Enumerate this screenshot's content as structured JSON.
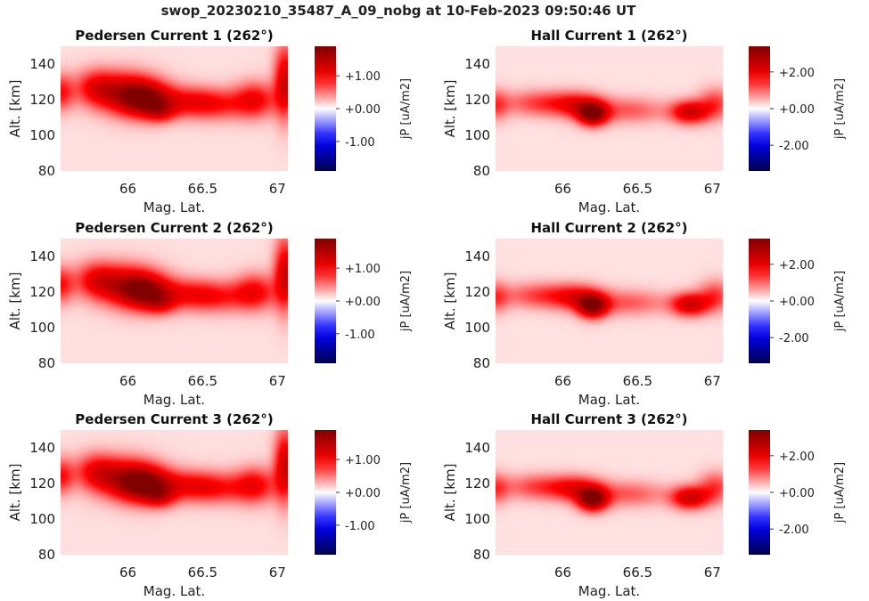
{
  "figure": {
    "title": "swop_20230210_35487_A_09_nobg at 10-Feb-2023 09:50:46 UT"
  },
  "chart_data": [
    {
      "type": "heatmap",
      "title": "Pedersen Current 1 (262°)",
      "xlabel": "Mag. Lat.",
      "ylabel": "Alt. [km]",
      "xlim": [
        65.55,
        67.07
      ],
      "ylim": [
        80,
        150
      ],
      "xticks": [
        66,
        66.5,
        67
      ],
      "xticklabels": [
        "66",
        "66.5",
        "67"
      ],
      "yticks": [
        80,
        100,
        120,
        140
      ],
      "yticklabels": [
        "80",
        "100",
        "120",
        "140"
      ],
      "colorbar": {
        "label": "jP [uA/m2]",
        "vmin": -1.9,
        "vmax": 1.9,
        "ticks": [
          1.0,
          0.0,
          -1.0
        ],
        "ticklabels": [
          "+1.00",
          "+0.00",
          "-1.00"
        ],
        "cmap": "seismic"
      },
      "background_value": 0.12,
      "blobs": [
        {
          "lat": 65.55,
          "alt": 124,
          "sigma_lat": 0.06,
          "sigma_alt": 7,
          "value": 0.75
        },
        {
          "lat": 65.78,
          "alt": 127,
          "sigma_lat": 0.1,
          "sigma_alt": 7,
          "value": 0.7
        },
        {
          "lat": 65.98,
          "alt": 124,
          "sigma_lat": 0.15,
          "sigma_alt": 8,
          "value": 1.1
        },
        {
          "lat": 66.12,
          "alt": 120,
          "sigma_lat": 0.12,
          "sigma_alt": 7,
          "value": 1.25
        },
        {
          "lat": 66.22,
          "alt": 113,
          "sigma_lat": 0.07,
          "sigma_alt": 4,
          "value": 0.55
        },
        {
          "lat": 66.4,
          "alt": 119,
          "sigma_lat": 0.16,
          "sigma_alt": 6,
          "value": 0.7
        },
        {
          "lat": 66.6,
          "alt": 117,
          "sigma_lat": 0.15,
          "sigma_alt": 6,
          "value": 0.55
        },
        {
          "lat": 66.85,
          "alt": 120,
          "sigma_lat": 0.1,
          "sigma_alt": 7,
          "value": 0.85
        },
        {
          "lat": 67.05,
          "alt": 130,
          "sigma_lat": 0.05,
          "sigma_alt": 14,
          "value": 1.15
        }
      ]
    },
    {
      "type": "heatmap",
      "title": "Hall Current 1 (262°)",
      "xlabel": "Mag. Lat.",
      "ylabel": "Alt. [km]",
      "xlim": [
        65.55,
        67.07
      ],
      "ylim": [
        80,
        150
      ],
      "xticks": [
        66,
        66.5,
        67
      ],
      "xticklabels": [
        "66",
        "66.5",
        "67"
      ],
      "yticks": [
        80,
        100,
        120,
        140
      ],
      "yticklabels": [
        "80",
        "100",
        "120",
        "140"
      ],
      "colorbar": {
        "label": "jP [uA/m2]",
        "vmin": -3.4,
        "vmax": 3.4,
        "ticks": [
          2.0,
          0.0,
          -2.0
        ],
        "ticklabels": [
          "+2.00",
          "+0.00",
          "-2.00"
        ],
        "cmap": "seismic"
      },
      "background_value": 0.2,
      "blobs": [
        {
          "lat": 65.55,
          "alt": 117,
          "sigma_lat": 0.06,
          "sigma_alt": 6,
          "value": 1.0
        },
        {
          "lat": 65.85,
          "alt": 118,
          "sigma_lat": 0.18,
          "sigma_alt": 5,
          "value": 1.1
        },
        {
          "lat": 66.1,
          "alt": 117,
          "sigma_lat": 0.12,
          "sigma_alt": 5,
          "value": 1.3
        },
        {
          "lat": 66.2,
          "alt": 112,
          "sigma_lat": 0.07,
          "sigma_alt": 4.5,
          "value": 2.9
        },
        {
          "lat": 66.45,
          "alt": 114,
          "sigma_lat": 0.17,
          "sigma_alt": 5,
          "value": 0.9
        },
        {
          "lat": 66.85,
          "alt": 113,
          "sigma_lat": 0.09,
          "sigma_alt": 4.5,
          "value": 2.1
        },
        {
          "lat": 67.02,
          "alt": 118,
          "sigma_lat": 0.08,
          "sigma_alt": 6,
          "value": 1.1
        }
      ]
    },
    {
      "type": "heatmap",
      "title": "Pedersen Current 2 (262°)",
      "xlabel": "Mag. Lat.",
      "ylabel": "Alt. [km]",
      "xlim": [
        65.55,
        67.07
      ],
      "ylim": [
        80,
        150
      ],
      "xticks": [
        66,
        66.5,
        67
      ],
      "xticklabels": [
        "66",
        "66.5",
        "67"
      ],
      "yticks": [
        80,
        100,
        120,
        140
      ],
      "yticklabels": [
        "80",
        "100",
        "120",
        "140"
      ],
      "colorbar": {
        "label": "jP [uA/m2]",
        "vmin": -1.9,
        "vmax": 1.9,
        "ticks": [
          1.0,
          0.0,
          -1.0
        ],
        "ticklabels": [
          "+1.00",
          "+0.00",
          "-1.00"
        ],
        "cmap": "seismic"
      },
      "background_value": 0.12,
      "blobs": [
        {
          "lat": 65.55,
          "alt": 124,
          "sigma_lat": 0.06,
          "sigma_alt": 7,
          "value": 0.75
        },
        {
          "lat": 65.78,
          "alt": 127,
          "sigma_lat": 0.1,
          "sigma_alt": 7,
          "value": 0.7
        },
        {
          "lat": 65.98,
          "alt": 124,
          "sigma_lat": 0.15,
          "sigma_alt": 8,
          "value": 1.05
        },
        {
          "lat": 66.12,
          "alt": 120,
          "sigma_lat": 0.12,
          "sigma_alt": 7,
          "value": 1.2
        },
        {
          "lat": 66.22,
          "alt": 113,
          "sigma_lat": 0.07,
          "sigma_alt": 4,
          "value": 0.5
        },
        {
          "lat": 66.4,
          "alt": 119,
          "sigma_lat": 0.16,
          "sigma_alt": 6,
          "value": 0.65
        },
        {
          "lat": 66.6,
          "alt": 117,
          "sigma_lat": 0.15,
          "sigma_alt": 6,
          "value": 0.55
        },
        {
          "lat": 66.85,
          "alt": 120,
          "sigma_lat": 0.1,
          "sigma_alt": 7,
          "value": 0.85
        },
        {
          "lat": 67.05,
          "alt": 130,
          "sigma_lat": 0.05,
          "sigma_alt": 14,
          "value": 1.15
        }
      ]
    },
    {
      "type": "heatmap",
      "title": "Hall Current 2 (262°)",
      "xlabel": "Mag. Lat.",
      "ylabel": "Alt. [km]",
      "xlim": [
        65.55,
        67.07
      ],
      "ylim": [
        80,
        150
      ],
      "xticks": [
        66,
        66.5,
        67
      ],
      "xticklabels": [
        "66",
        "66.5",
        "67"
      ],
      "yticks": [
        80,
        100,
        120,
        140
      ],
      "yticklabels": [
        "80",
        "100",
        "120",
        "140"
      ],
      "colorbar": {
        "label": "jP [uA/m2]",
        "vmin": -3.4,
        "vmax": 3.4,
        "ticks": [
          2.0,
          0.0,
          -2.0
        ],
        "ticklabels": [
          "+2.00",
          "+0.00",
          "-2.00"
        ],
        "cmap": "seismic"
      },
      "background_value": 0.2,
      "blobs": [
        {
          "lat": 65.55,
          "alt": 117,
          "sigma_lat": 0.06,
          "sigma_alt": 6,
          "value": 1.0
        },
        {
          "lat": 65.85,
          "alt": 118,
          "sigma_lat": 0.18,
          "sigma_alt": 5,
          "value": 1.1
        },
        {
          "lat": 66.1,
          "alt": 117,
          "sigma_lat": 0.12,
          "sigma_alt": 5,
          "value": 1.3
        },
        {
          "lat": 66.2,
          "alt": 112,
          "sigma_lat": 0.07,
          "sigma_alt": 4.5,
          "value": 2.8
        },
        {
          "lat": 66.45,
          "alt": 114,
          "sigma_lat": 0.17,
          "sigma_alt": 5,
          "value": 0.9
        },
        {
          "lat": 66.85,
          "alt": 113,
          "sigma_lat": 0.09,
          "sigma_alt": 4.5,
          "value": 2.1
        },
        {
          "lat": 67.02,
          "alt": 118,
          "sigma_lat": 0.08,
          "sigma_alt": 6,
          "value": 1.1
        }
      ]
    },
    {
      "type": "heatmap",
      "title": "Pedersen Current 3 (262°)",
      "xlabel": "Mag. Lat.",
      "ylabel": "Alt. [km]",
      "xlim": [
        65.55,
        67.07
      ],
      "ylim": [
        80,
        150
      ],
      "xticks": [
        66,
        66.5,
        67
      ],
      "xticklabels": [
        "66",
        "66.5",
        "67"
      ],
      "yticks": [
        80,
        100,
        120,
        140
      ],
      "yticklabels": [
        "80",
        "100",
        "120",
        "140"
      ],
      "colorbar": {
        "label": "jP [uA/m2]",
        "vmin": -1.9,
        "vmax": 1.9,
        "ticks": [
          1.0,
          0.0,
          -1.0
        ],
        "ticklabels": [
          "+1.00",
          "+0.00",
          "-1.00"
        ],
        "cmap": "seismic"
      },
      "background_value": 0.12,
      "blobs": [
        {
          "lat": 65.55,
          "alt": 124,
          "sigma_lat": 0.06,
          "sigma_alt": 7,
          "value": 0.75
        },
        {
          "lat": 65.78,
          "alt": 127,
          "sigma_lat": 0.1,
          "sigma_alt": 7,
          "value": 0.7
        },
        {
          "lat": 65.98,
          "alt": 123,
          "sigma_lat": 0.15,
          "sigma_alt": 8,
          "value": 1.1
        },
        {
          "lat": 66.12,
          "alt": 119,
          "sigma_lat": 0.12,
          "sigma_alt": 7,
          "value": 1.3
        },
        {
          "lat": 66.22,
          "alt": 112,
          "sigma_lat": 0.07,
          "sigma_alt": 4,
          "value": 0.55
        },
        {
          "lat": 66.4,
          "alt": 119,
          "sigma_lat": 0.16,
          "sigma_alt": 6,
          "value": 0.7
        },
        {
          "lat": 66.6,
          "alt": 117,
          "sigma_lat": 0.15,
          "sigma_alt": 6,
          "value": 0.55
        },
        {
          "lat": 66.85,
          "alt": 119,
          "sigma_lat": 0.1,
          "sigma_alt": 7,
          "value": 0.85
        },
        {
          "lat": 67.05,
          "alt": 130,
          "sigma_lat": 0.05,
          "sigma_alt": 14,
          "value": 1.15
        }
      ]
    },
    {
      "type": "heatmap",
      "title": "Hall Current 3 (262°)",
      "xlabel": "Mag. Lat.",
      "ylabel": "Alt. [km]",
      "xlim": [
        65.55,
        67.07
      ],
      "ylim": [
        80,
        150
      ],
      "xticks": [
        66,
        66.5,
        67
      ],
      "xticklabels": [
        "66",
        "66.5",
        "67"
      ],
      "yticks": [
        80,
        100,
        120,
        140
      ],
      "yticklabels": [
        "80",
        "100",
        "120",
        "140"
      ],
      "colorbar": {
        "label": "jP [uA/m2]",
        "vmin": -3.4,
        "vmax": 3.4,
        "ticks": [
          2.0,
          0.0,
          -2.0
        ],
        "ticklabels": [
          "+2.00",
          "+0.00",
          "-2.00"
        ],
        "cmap": "seismic"
      },
      "background_value": 0.2,
      "blobs": [
        {
          "lat": 65.55,
          "alt": 117,
          "sigma_lat": 0.06,
          "sigma_alt": 6,
          "value": 1.0
        },
        {
          "lat": 65.85,
          "alt": 118,
          "sigma_lat": 0.18,
          "sigma_alt": 5,
          "value": 1.1
        },
        {
          "lat": 66.1,
          "alt": 117,
          "sigma_lat": 0.12,
          "sigma_alt": 5,
          "value": 1.3
        },
        {
          "lat": 66.2,
          "alt": 111,
          "sigma_lat": 0.07,
          "sigma_alt": 4.5,
          "value": 2.9
        },
        {
          "lat": 66.45,
          "alt": 114,
          "sigma_lat": 0.17,
          "sigma_alt": 5,
          "value": 0.9
        },
        {
          "lat": 66.85,
          "alt": 112,
          "sigma_lat": 0.09,
          "sigma_alt": 4.5,
          "value": 2.1
        },
        {
          "lat": 67.02,
          "alt": 118,
          "sigma_lat": 0.08,
          "sigma_alt": 6,
          "value": 1.1
        }
      ]
    }
  ]
}
